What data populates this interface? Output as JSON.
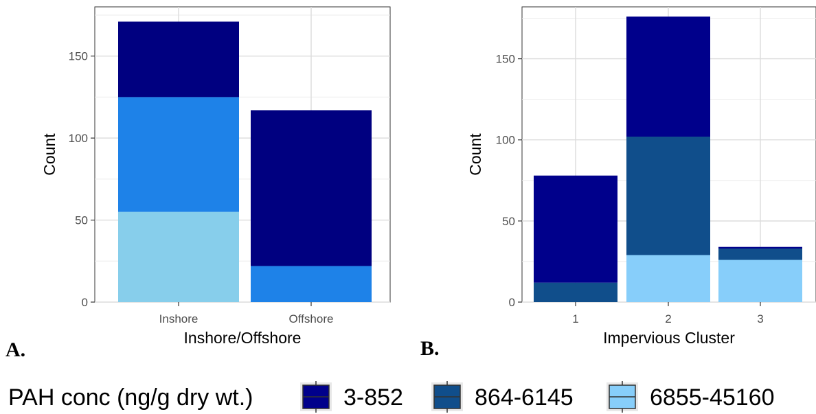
{
  "chart_data": [
    {
      "type": "bar",
      "stacked": true,
      "panel_tag": "A.",
      "categories": [
        "Inshore",
        "Offshore"
      ],
      "series": [
        {
          "name": "3-852",
          "color": "#000080",
          "values": [
            46,
            95
          ]
        },
        {
          "name": "864-6145",
          "color": "#1E82E8",
          "values": [
            70,
            22
          ]
        },
        {
          "name": "6855-45160",
          "color": "#87CEEB",
          "values": [
            55,
            0
          ]
        }
      ],
      "xlabel": "Inshore/Offshore",
      "ylabel": "Count",
      "ylim": [
        0,
        180
      ],
      "yticks": [
        0,
        50,
        100,
        150
      ],
      "grid": true
    },
    {
      "type": "bar",
      "stacked": true,
      "panel_tag": "B.",
      "categories": [
        "1",
        "2",
        "3"
      ],
      "series": [
        {
          "name": "3-852",
          "color": "#00008B",
          "values": [
            66,
            74,
            1
          ]
        },
        {
          "name": "864-6145",
          "color": "#104E8B",
          "values": [
            12,
            73,
            7
          ]
        },
        {
          "name": "6855-45160",
          "color": "#87CEFA",
          "values": [
            0,
            29,
            26
          ]
        }
      ],
      "xlabel": "Impervious Cluster",
      "ylabel": "Count",
      "ylim": [
        0,
        182
      ],
      "yticks": [
        0,
        50,
        100,
        150
      ],
      "grid": true
    }
  ],
  "legend": {
    "title": "PAH conc (ng/g dry wt.)",
    "items": [
      {
        "label": "3-852",
        "color": "#00008B"
      },
      {
        "label": "864-6145",
        "color": "#104E8B"
      },
      {
        "label": "6855-45160",
        "color": "#87CEFA"
      }
    ]
  }
}
